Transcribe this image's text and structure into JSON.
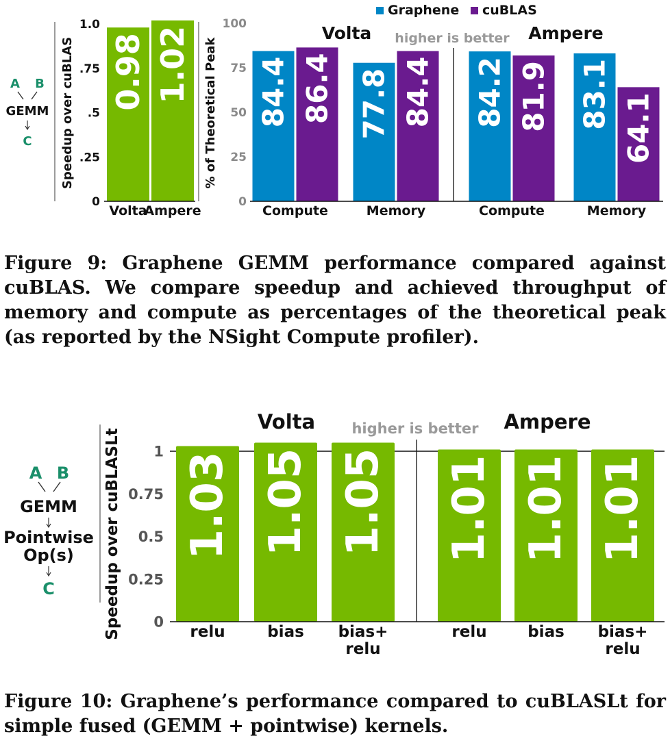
{
  "figure9": {
    "diagram": {
      "a": "A",
      "b": "B",
      "gemm": "GEMM",
      "c": "C"
    },
    "caption": "Figure 9: Graphene GEMM performance compared against cuBLAS. We compare speedup and achieved throughput of memory and compute as percentages of the theoretical peak (as reported by the NSight Compute profiler).",
    "colors": {
      "graphene": "#0086c6",
      "cublas": "#6a1b8f",
      "green": "#76b900",
      "annotation": "#9a9a9a",
      "diagram_text": "#1a8f6a"
    }
  },
  "figure10": {
    "diagram": {
      "a": "A",
      "b": "B",
      "gemm": "GEMM",
      "pointwise": "Pointwise",
      "ops": "Op(s)",
      "c": "C"
    },
    "caption": "Figure 10: Graphene’s performance compared to cuBLASLt for simple fused (GEMM + pointwise) kernels."
  },
  "chart_data": [
    {
      "type": "bar",
      "ylabel": "Speedup over cuBLAS",
      "categories": [
        "Volta",
        "Ampere"
      ],
      "values": [
        0.98,
        1.02
      ],
      "value_labels": [
        "0.98",
        "1.02"
      ],
      "yticks": [
        "0",
        ".25",
        ".5",
        ".75",
        "1.0"
      ],
      "ytick_values": [
        0,
        0.25,
        0.5,
        0.75,
        1.0
      ],
      "ylim": [
        0,
        1.0
      ],
      "color": "#76b900"
    },
    {
      "type": "bar",
      "ylabel": "% of Theoretical Peak",
      "groups": [
        "Volta",
        "Ampere"
      ],
      "categories": [
        "Compute",
        "Memory",
        "Compute",
        "Memory"
      ],
      "series": [
        {
          "name": "Graphene",
          "values": [
            84.4,
            77.8,
            84.2,
            83.1
          ],
          "labels": [
            "84.4",
            "77.8",
            "84.2",
            "83.1"
          ],
          "color": "#0086c6"
        },
        {
          "name": "cuBLAS",
          "values": [
            86.4,
            84.4,
            81.9,
            64.1
          ],
          "labels": [
            "86.4",
            "84.4",
            "81.9",
            "64.1"
          ],
          "color": "#6a1b8f"
        }
      ],
      "yticks": [
        "0",
        "25",
        "50",
        "75",
        "100"
      ],
      "ytick_values": [
        0,
        25,
        50,
        75,
        100
      ],
      "ylim": [
        0,
        100
      ],
      "annotation": "higher is better",
      "legend_position": "top"
    },
    {
      "type": "bar",
      "ylabel": "Speedup over cuBLASLt",
      "groups": [
        "Volta",
        "Ampere"
      ],
      "categories": [
        "relu",
        "bias",
        "bias+\nrelu",
        "relu",
        "bias",
        "bias+\nrelu"
      ],
      "values": [
        1.03,
        1.05,
        1.05,
        1.01,
        1.01,
        1.01
      ],
      "value_labels": [
        "1.03",
        "1.05",
        "1.05",
        "1.01",
        "1.01",
        "1.01"
      ],
      "yticks": [
        "0",
        "0.25",
        "0.5",
        "0.75",
        "1"
      ],
      "ytick_values": [
        0,
        0.25,
        0.5,
        0.75,
        1
      ],
      "ylim": [
        0,
        1.0
      ],
      "annotation": "higher is better",
      "color": "#76b900"
    }
  ]
}
